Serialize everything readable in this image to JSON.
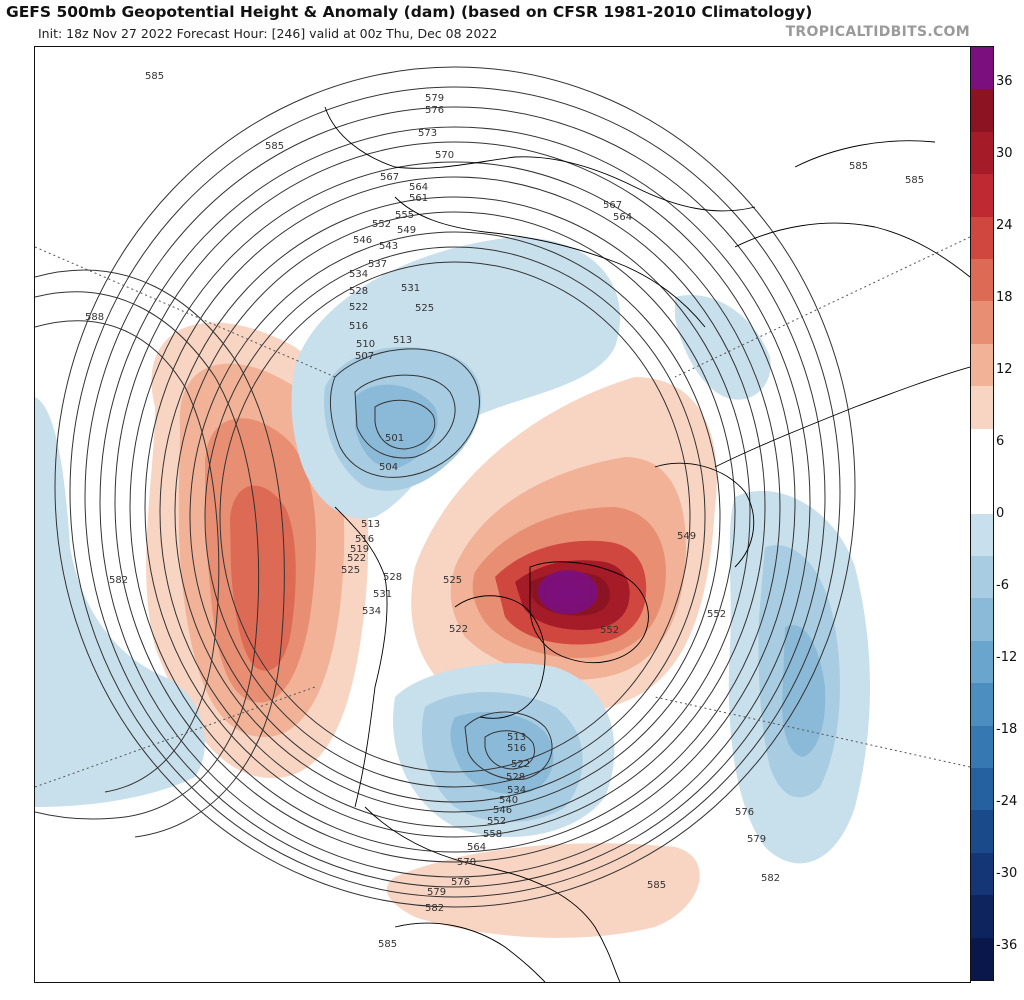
{
  "header": {
    "title": "GEFS 500mb Geopotential Height & Anomaly (dam) (based on CFSR 1981-2010 Climatology)",
    "subtitle": "Init: 18z Nov 27 2022   Forecast Hour: [246]   valid at 00z Thu, Dec 08 2022",
    "watermark": "TROPICALTIDBITS.COM"
  },
  "colorbar": {
    "ticks": [
      "36",
      "30",
      "24",
      "18",
      "12",
      "6",
      "0",
      "-6",
      "-12",
      "-18",
      "-24",
      "-30",
      "-36"
    ],
    "colors": [
      "#7b0f7e",
      "#8c1422",
      "#a51b28",
      "#bf2a32",
      "#d0473f",
      "#dd6a55",
      "#e88e72",
      "#f1b297",
      "#f8d4c2",
      "#ffffff",
      "#ffffff",
      "#c8dfec",
      "#a8cde2",
      "#8bbad8",
      "#6aa5cd",
      "#4c8ec0",
      "#3578b2",
      "#2560a0",
      "#1b4a8a",
      "#143676",
      "#0e245f",
      "#0a174a"
    ]
  },
  "contour_labels": [
    "579",
    "576",
    "573",
    "570",
    "567",
    "564",
    "561",
    "555",
    "552",
    "549",
    "546",
    "543",
    "537",
    "534",
    "531",
    "528",
    "525",
    "522",
    "516",
    "513",
    "510",
    "507",
    "501",
    "504",
    "519",
    "585",
    "588",
    "582",
    "549",
    "552",
    "558",
    "540",
    "546",
    "534",
    "528",
    "522",
    "516",
    "513",
    "564",
    "570",
    "576",
    "579",
    "582",
    "585",
    "576",
    "579",
    "582",
    "585",
    "567",
    "564"
  ]
}
